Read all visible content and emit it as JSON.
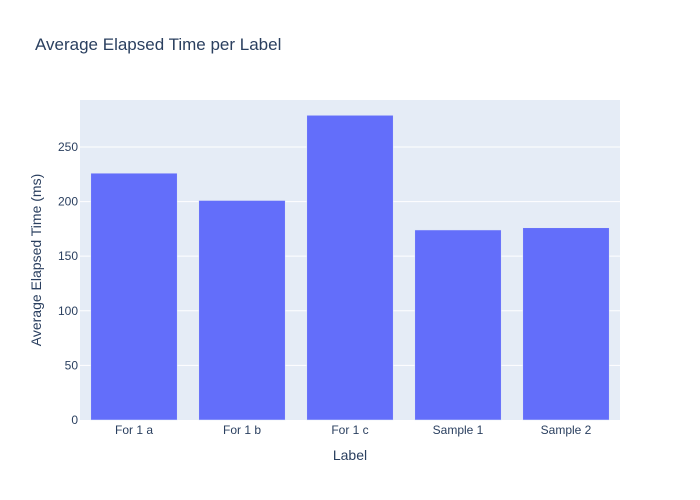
{
  "chart_data": {
    "type": "bar",
    "title": "Average Elapsed Time per Label",
    "xlabel": "Label",
    "ylabel": "Average Elapsed Time (ms)",
    "categories": [
      "For 1 a",
      "For 1 b",
      "For 1 c",
      "Sample 1",
      "Sample 2"
    ],
    "values": [
      226,
      201,
      279,
      174,
      176
    ],
    "ylim": [
      0,
      293
    ],
    "yticks": [
      0,
      50,
      100,
      150,
      200,
      250
    ],
    "grid": true,
    "legend": "none",
    "colors": {
      "bar": "#636efa",
      "plot_bg": "#e5ecf6",
      "grid": "#ffffff",
      "text": "#2a3f5f"
    }
  }
}
